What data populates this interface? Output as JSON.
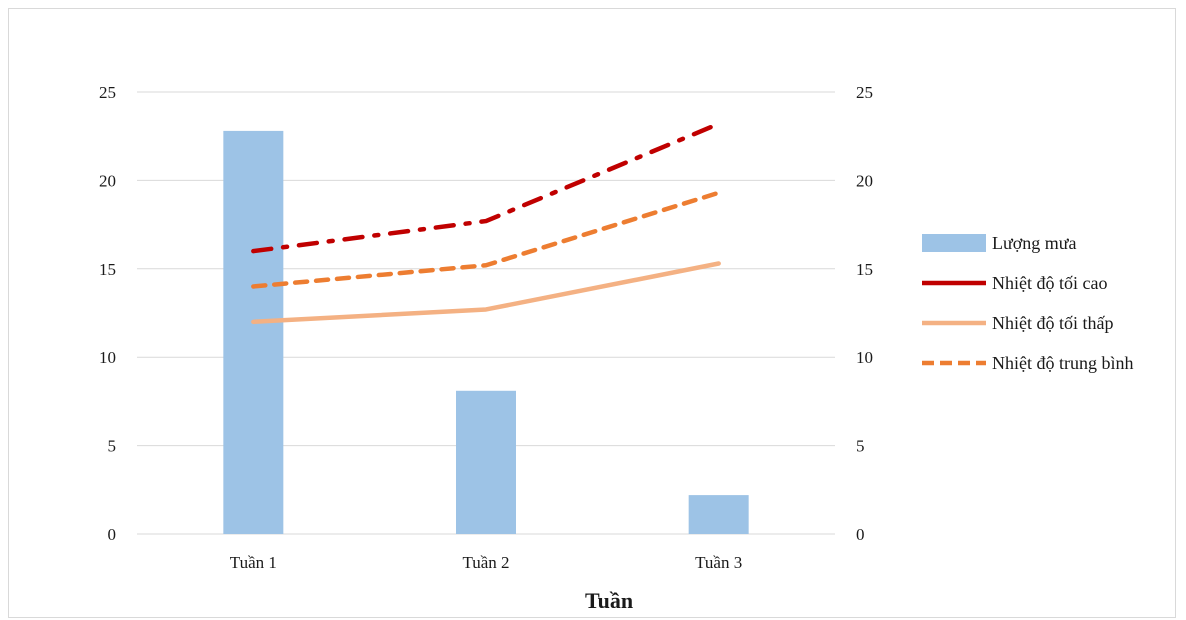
{
  "chart_data": {
    "type": "bar",
    "title": "",
    "xlabel": "Tuần",
    "ylabel": "",
    "categories": [
      "Tuần 1",
      "Tuần 2",
      "Tuần 3"
    ],
    "ylim": [
      0,
      25
    ],
    "y2lim": [
      0,
      25
    ],
    "yticks": [
      "0",
      "5",
      "10",
      "15",
      "20",
      "25"
    ],
    "grid": true,
    "legend_position": "right",
    "series": [
      {
        "name": "Lượng mưa",
        "kind": "bar",
        "axis": "left",
        "color": "#9dc3e6",
        "values": [
          22.8,
          8.1,
          2.2
        ]
      },
      {
        "name": "Nhiệt độ tối cao",
        "kind": "line",
        "style": "dash-dot",
        "axis": "right",
        "color": "#c00000",
        "values": [
          16.0,
          17.7,
          23.2
        ]
      },
      {
        "name": "Nhiệt độ tối thấp",
        "kind": "line",
        "style": "solid",
        "axis": "right",
        "color": "#f4b183",
        "values": [
          12.0,
          12.7,
          15.3
        ]
      },
      {
        "name": "Nhiệt độ trung bình",
        "kind": "line",
        "style": "dash",
        "axis": "right",
        "color": "#ed7d31",
        "values": [
          14.0,
          15.2,
          19.3
        ]
      }
    ]
  }
}
